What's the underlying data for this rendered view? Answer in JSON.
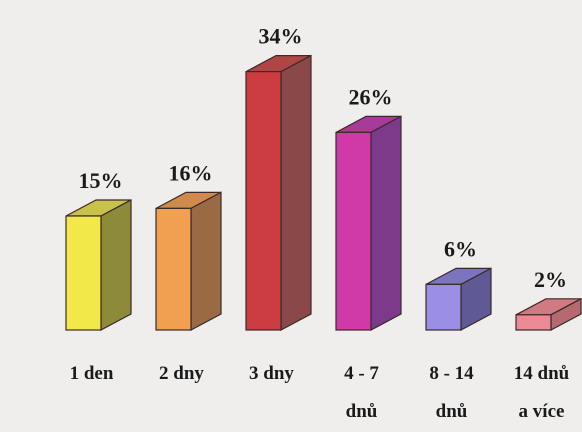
{
  "chart_data": {
    "type": "bar",
    "categories": [
      {
        "line1": "1 den",
        "line2": ""
      },
      {
        "line1": "2 dny",
        "line2": ""
      },
      {
        "line1": "3 dny",
        "line2": ""
      },
      {
        "line1": "4 - 7",
        "line2": "dnů"
      },
      {
        "line1": "8 - 14",
        "line2": "dnů"
      },
      {
        "line1": "14 dnů",
        "line2": "a více"
      }
    ],
    "values": [
      15,
      16,
      34,
      26,
      6,
      2
    ],
    "value_labels": [
      "15%",
      "16%",
      "34%",
      "26%",
      "6%",
      "2%"
    ],
    "unit": "%",
    "style": "3d",
    "grid": false,
    "legend": "none",
    "colors": [
      {
        "front": "#f3e84a",
        "side": "#8d8a3a",
        "top": "#c9c24a"
      },
      {
        "front": "#f0a050",
        "side": "#9a6a45",
        "top": "#cf8a4c"
      },
      {
        "front": "#cc3d42",
        "side": "#8a4848",
        "top": "#b04546"
      },
      {
        "front": "#cf3aa8",
        "side": "#7e3a8a",
        "top": "#a83a9a"
      },
      {
        "front": "#9a8ee6",
        "side": "#5f5a96",
        "top": "#7d74c0"
      },
      {
        "front": "#ec8a94",
        "side": "#b46a70",
        "top": "#d07a82"
      }
    ]
  }
}
